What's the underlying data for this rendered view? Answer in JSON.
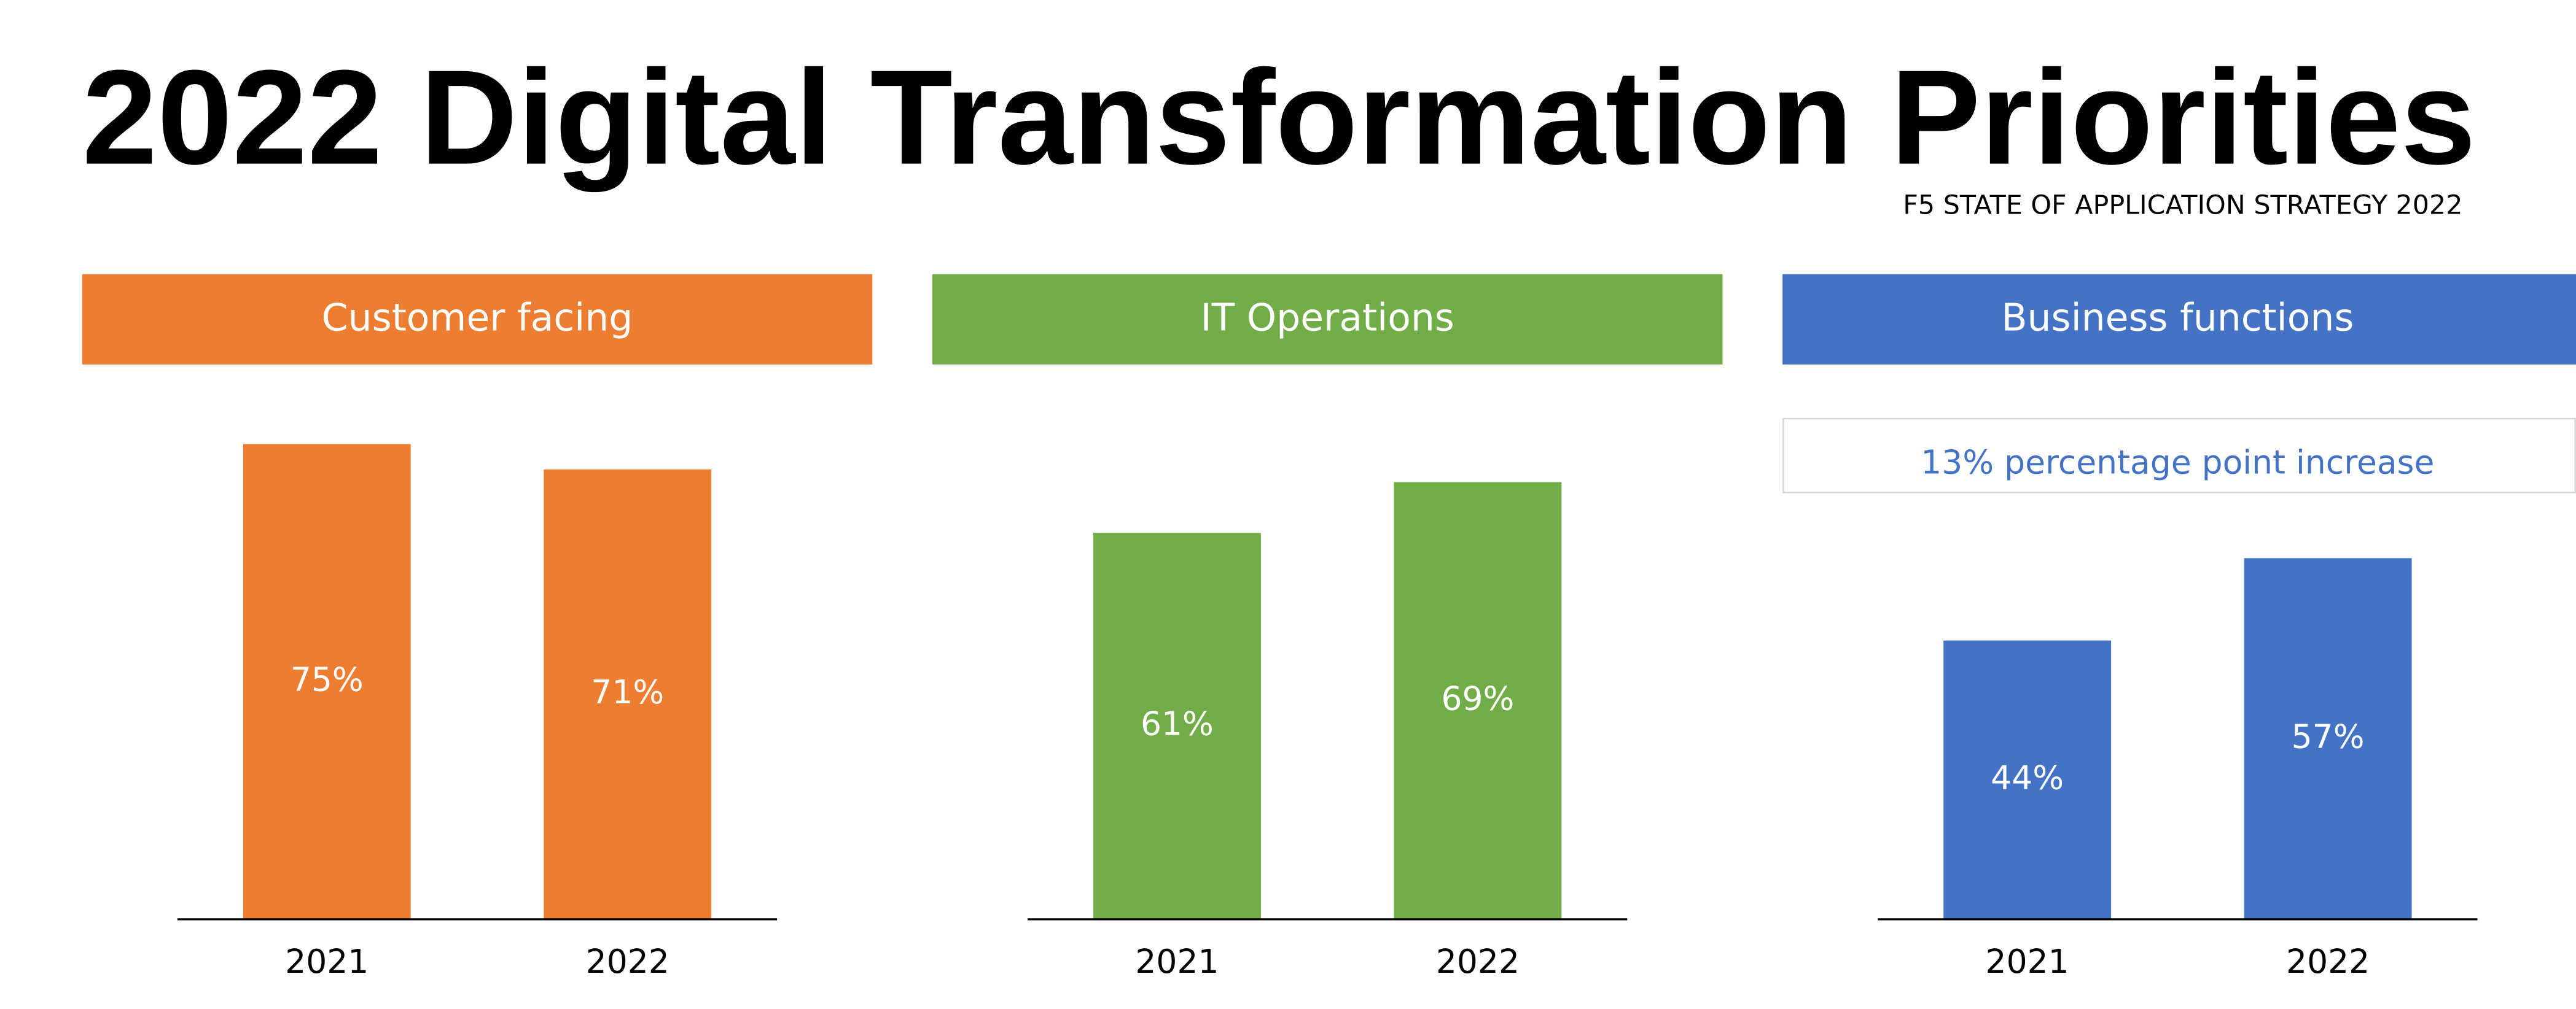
{
  "title": "2022 Digital Transformation Priorities",
  "subtitle": "F5 STATE OF APPLICATION STRATEGY 2022",
  "chart_data": [
    {
      "type": "bar",
      "title": "Customer facing",
      "categories": [
        "2021",
        "2022"
      ],
      "values": [
        75,
        71
      ],
      "value_labels": [
        "75%",
        "71%"
      ],
      "color": "#ED7D31",
      "ylim": [
        0,
        100
      ]
    },
    {
      "type": "bar",
      "title": "IT Operations",
      "categories": [
        "2021",
        "2022"
      ],
      "values": [
        61,
        69
      ],
      "value_labels": [
        "61%",
        "69%"
      ],
      "color": "#70AD47",
      "ylim": [
        0,
        100
      ]
    },
    {
      "type": "bar",
      "title": "Business functions",
      "categories": [
        "2021",
        "2022"
      ],
      "values": [
        44,
        57
      ],
      "value_labels": [
        "44%",
        "57%"
      ],
      "color": "#4472C4",
      "ylim": [
        0,
        100
      ],
      "annotation": "13% percentage point increase"
    }
  ]
}
